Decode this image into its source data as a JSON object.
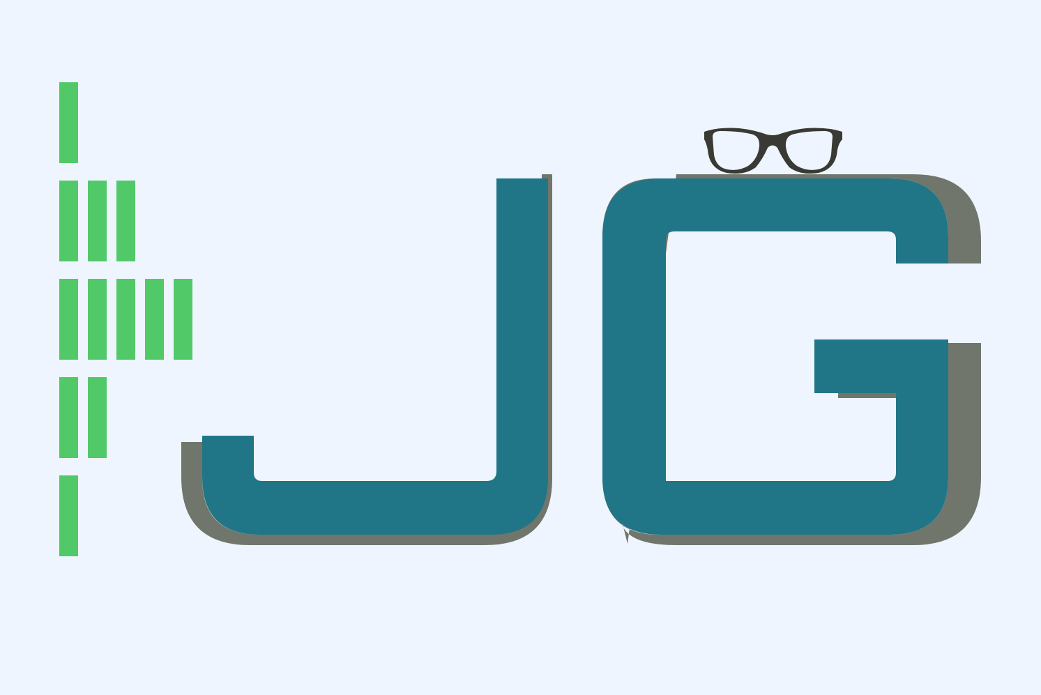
{
  "logo": {
    "text": "JG",
    "colors": {
      "background": "#eef5fe",
      "letter_fill": "#207686",
      "letter_shadow": "#70766b",
      "bars": "#52c968",
      "glasses": "#3a3a35"
    },
    "icons": [
      "glasses-icon"
    ],
    "bar_rows": [
      1,
      3,
      5,
      2,
      1
    ]
  }
}
